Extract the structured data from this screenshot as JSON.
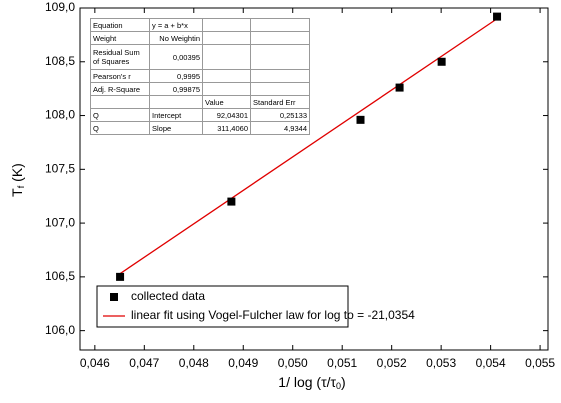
{
  "chart_data": {
    "type": "scatter",
    "y_label": {
      "main": "T",
      "sub": "f",
      "suffix": " (K)"
    },
    "x_label": {
      "main": "1/ log (τ/τ",
      "sub": "0",
      "suffix": ")"
    },
    "xlim": [
      0.0457,
      0.05516
    ],
    "ylim": [
      105.82,
      109.0
    ],
    "xticks": [
      {
        "value": 0.046,
        "label": "0,046"
      },
      {
        "value": 0.047,
        "label": "0,047"
      },
      {
        "value": 0.048,
        "label": "0,048"
      },
      {
        "value": 0.049,
        "label": "0,049"
      },
      {
        "value": 0.05,
        "label": "0,050"
      },
      {
        "value": 0.051,
        "label": "0,051"
      },
      {
        "value": 0.052,
        "label": "0,052"
      },
      {
        "value": 0.053,
        "label": "0,053"
      },
      {
        "value": 0.054,
        "label": "0,054"
      },
      {
        "value": 0.055,
        "label": "0,055"
      }
    ],
    "yticks": [
      {
        "value": 106.0,
        "label": "106,0"
      },
      {
        "value": 106.5,
        "label": "106,5"
      },
      {
        "value": 107.0,
        "label": "107,0"
      },
      {
        "value": 107.5,
        "label": "107,5"
      },
      {
        "value": 108.0,
        "label": "108,0"
      },
      {
        "value": 108.5,
        "label": "108,5"
      },
      {
        "value": 109.0,
        "label": "109,0"
      }
    ],
    "series": [
      {
        "name": "collected data",
        "color": "#000000",
        "x": [
          0.04651,
          0.04876,
          0.05137,
          0.05216,
          0.05301,
          0.05413
        ],
        "values": [
          106.5,
          107.2,
          107.96,
          108.26,
          108.5,
          108.92
        ]
      },
      {
        "name": "linear fit using Vogel-Fulcher law for log to = -21,0354",
        "color": "#e00000",
        "x": [
          0.04651,
          0.05413
        ],
        "values": [
          106.53,
          108.9
        ]
      }
    ],
    "legend": "lower-left",
    "table": {
      "rows": [
        [
          "Equation",
          "y = a + b*x",
          null,
          null
        ],
        [
          "Weight",
          "No Weightin",
          null,
          null
        ],
        [
          "Residual Sum of Squares",
          "0,00395",
          null,
          null
        ],
        [
          "Pearson's r",
          "0,9995",
          null,
          null
        ],
        [
          "Adj. R-Square",
          "0,99875",
          null,
          null
        ],
        [
          null,
          null,
          "Value",
          "Standard Err"
        ],
        [
          "Q",
          "Intercept",
          "92,04301",
          "0,25133"
        ],
        [
          "Q",
          "Slope",
          "311,4060",
          "4,9344"
        ]
      ]
    }
  }
}
